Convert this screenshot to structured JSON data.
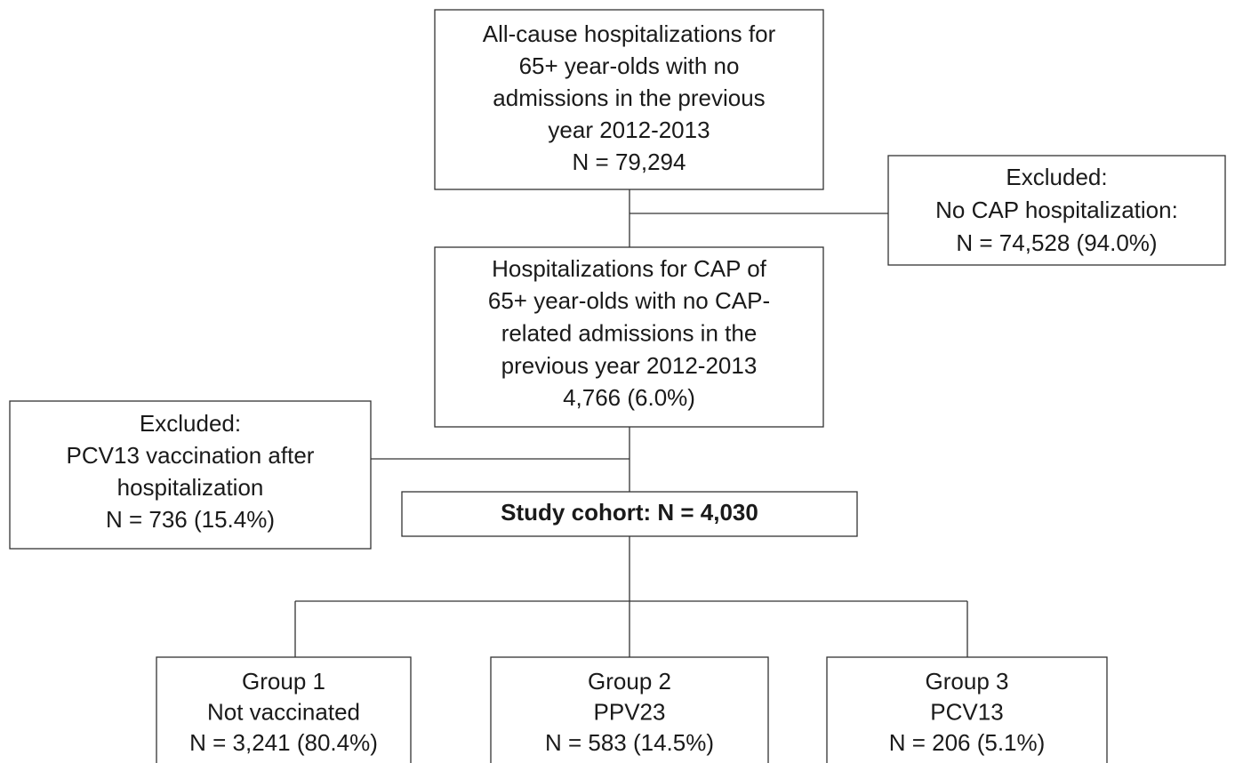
{
  "nodes": [
    {
      "lines": [
        "All-cause hospitalizations for",
        "65+ year-olds with no",
        "admissions in the previous",
        "year 2012-2013",
        "N = 79,294"
      ]
    },
    {
      "lines": [
        "Excluded:",
        "No CAP hospitalization:",
        "N = 74,528 (94.0%)"
      ]
    },
    {
      "lines": [
        "Hospitalizations for CAP of",
        "65+ year-olds with no CAP-",
        "related admissions in the",
        "previous year 2012-2013",
        "4,766 (6.0%)"
      ]
    },
    {
      "lines": [
        "Excluded:",
        "PCV13 vaccination after",
        "hospitalization",
        "N = 736 (15.4%)"
      ]
    },
    {
      "lines": [
        "Study cohort: N = 4,030"
      ]
    },
    {
      "lines": [
        "Group 1",
        "Not vaccinated",
        "N = 3,241 (80.4%)"
      ]
    },
    {
      "lines": [
        "Group 2",
        "PPV23",
        "N = 583 (14.5%)"
      ]
    },
    {
      "lines": [
        "Group 3",
        "PCV13",
        "N = 206 (5.1%)"
      ]
    }
  ]
}
